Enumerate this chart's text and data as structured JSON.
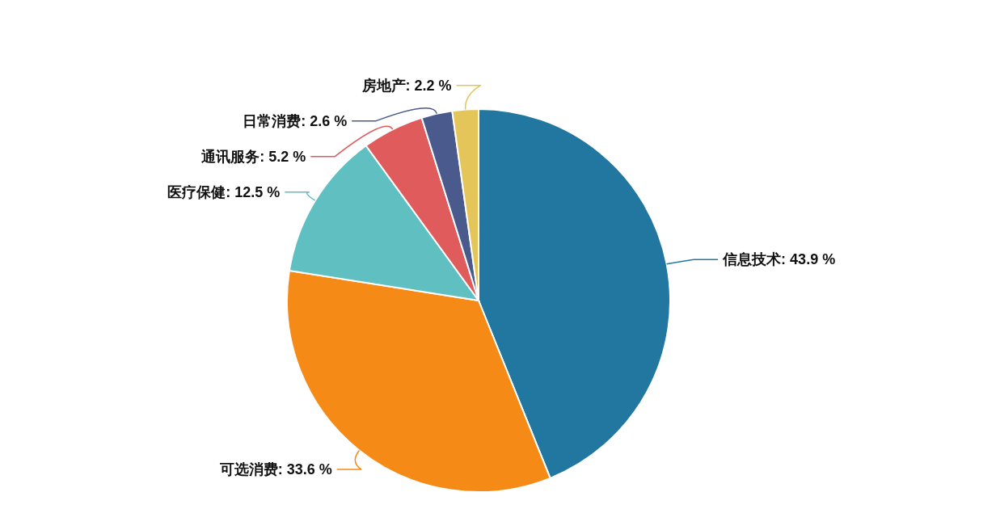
{
  "chart_data": {
    "type": "pie",
    "categories": [
      "信息技术",
      "可选消费",
      "医疗保健",
      "通讯服务",
      "日常消费",
      "房地产"
    ],
    "values": [
      43.9,
      33.6,
      12.5,
      5.2,
      2.6,
      2.2
    ],
    "value_labels": [
      "43.9 %",
      "33.6 %",
      "12.5 %",
      "5.2 %",
      "2.6 %",
      "2.2 %"
    ],
    "colors": [
      "#2277a0",
      "#f58a16",
      "#5fbfc1",
      "#e05c5c",
      "#4a5a8c",
      "#e3c55a"
    ]
  }
}
